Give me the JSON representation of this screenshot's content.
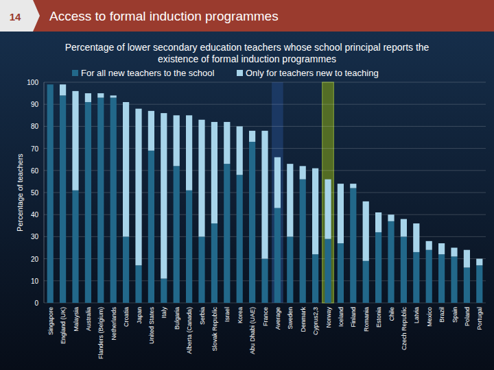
{
  "header": {
    "page_number": "14"
  },
  "chart_data": {
    "type": "bar",
    "stacked": true,
    "title": "Access to formal induction programmes",
    "subtitle": "Percentage of lower secondary education teachers whose school principal reports the existence of formal induction programmes",
    "y_label": "Percentage of teachers",
    "categories": [
      "Singapore",
      "England (UK)",
      "Malaysia",
      "Australia",
      "Flanders (Belgium)",
      "Netherlands",
      "Croatia",
      "Japan",
      "United States",
      "Italy",
      "Bulgaria",
      "Alberta (Canada)",
      "Serbia",
      "Slovak Republic",
      "Israel",
      "Korea",
      "Abu Dhabi (UAE)",
      "France",
      "Average",
      "Sweden",
      "Denmark",
      "Cyprus2,3",
      "Norway",
      "Iceland",
      "Finland",
      "Romania",
      "Estonia",
      "Chile",
      "Czech Republic",
      "Latvia",
      "Mexico",
      "Brazil",
      "Spain",
      "Poland",
      "Portugal"
    ],
    "series": [
      {
        "name": "For all new teachers to the school",
        "color": "#22688a",
        "values": [
          99,
          94,
          51,
          91,
          93,
          93,
          30,
          17,
          69,
          11,
          62,
          51,
          30,
          36,
          63,
          58,
          73,
          20,
          43,
          30,
          56,
          22,
          29,
          27,
          52,
          19,
          32,
          37,
          30,
          23,
          24,
          22,
          21,
          16,
          17
        ]
      },
      {
        "name": "Only for teachers new to teaching",
        "color": "#a7d4ea",
        "values": [
          0,
          5,
          45,
          4,
          2,
          1,
          61,
          71,
          18,
          75,
          23,
          34,
          53,
          46,
          19,
          22,
          5,
          58,
          23,
          33,
          6,
          39,
          27,
          27,
          2,
          27,
          9,
          3,
          8,
          13,
          4,
          5,
          4,
          8,
          3
        ]
      }
    ],
    "ylim": [
      0,
      100
    ],
    "yticks": [
      0,
      10,
      20,
      30,
      40,
      50,
      60,
      70,
      80,
      90,
      100
    ],
    "grid": true,
    "legend": "top"
  }
}
